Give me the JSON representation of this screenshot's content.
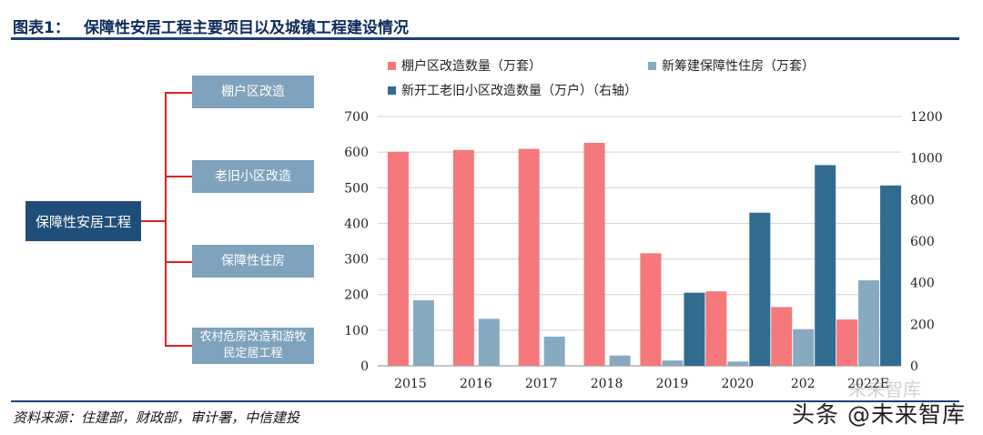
{
  "header": {
    "figure_label": "图表1：",
    "title": "保障性安居工程主要项目以及城镇工程建设情况"
  },
  "diagram": {
    "root": "保障性安居工程",
    "children": [
      "棚户区改造",
      "老旧小区改造",
      "保障性住房",
      "农村危房改造和游牧民定居工程"
    ]
  },
  "chart_data": {
    "type": "bar",
    "categories": [
      "2015",
      "2016",
      "2017",
      "2018",
      "2019",
      "2020",
      "2021",
      "2022E"
    ],
    "category_labels_shown": [
      "2015",
      "2016",
      "2017",
      "2018",
      "2019",
      "2020",
      "202",
      "2022E"
    ],
    "series": [
      {
        "name": "棚户区改造数量（万套）",
        "axis": "left",
        "color": "#f4787c",
        "values": [
          601,
          606,
          609,
          626,
          316,
          209,
          165,
          130
        ]
      },
      {
        "name": "新筹建保障性住房（万套）",
        "axis": "left",
        "color": "#87a9c2",
        "values": [
          184,
          132,
          82,
          29,
          15,
          12,
          103,
          240
        ]
      },
      {
        "name": "新开工老旧小区改造数量（万户）（右轴）",
        "axis": "right",
        "color": "#326b90",
        "values": [
          null,
          null,
          null,
          null,
          352,
          737,
          966,
          868
        ]
      }
    ],
    "y_left": {
      "min": 0,
      "max": 700,
      "ticks": [
        0,
        100,
        200,
        300,
        400,
        500,
        600,
        700
      ]
    },
    "y_right": {
      "min": 0,
      "max": 1200,
      "ticks": [
        0,
        200,
        400,
        600,
        800,
        1000,
        1200
      ]
    },
    "grid": true,
    "legend_position": "top"
  },
  "footer": {
    "source": "资料来源：住建部，财政部，审计署，中信建投",
    "watermark": "头条 @未来智库",
    "watermark_faint": "未来智库"
  }
}
